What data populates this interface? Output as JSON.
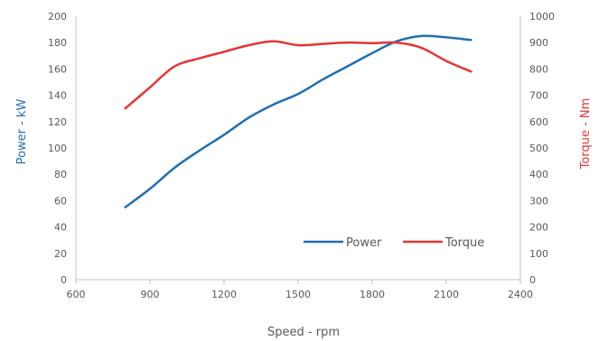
{
  "chart_data": {
    "type": "line",
    "title": "",
    "xlabel": "Speed - rpm",
    "ylabel_left": "Power - kW",
    "ylabel_right": "Torque - Nm",
    "xlim": [
      600,
      2400
    ],
    "ylim_left": [
      0,
      200
    ],
    "ylim_right": [
      0,
      1000
    ],
    "x_ticks": [
      600,
      900,
      1200,
      1500,
      1800,
      2100,
      2400
    ],
    "y_left_ticks": [
      0,
      20,
      40,
      60,
      80,
      100,
      120,
      140,
      160,
      180,
      200
    ],
    "y_right_ticks": [
      0,
      100,
      200,
      300,
      400,
      500,
      600,
      700,
      800,
      900,
      1000
    ],
    "grid": false,
    "legend_position": "bottom-right",
    "series": [
      {
        "name": "Power",
        "axis": "left",
        "color": "#1f6fb3",
        "x": [
          800,
          900,
          1000,
          1100,
          1200,
          1300,
          1400,
          1500,
          1600,
          1700,
          1800,
          1900,
          2000,
          2100,
          2200
        ],
        "y": [
          55,
          69,
          85,
          98,
          110,
          123,
          133,
          141,
          152,
          162,
          172,
          181,
          185,
          184,
          182
        ]
      },
      {
        "name": "Torque",
        "axis": "right",
        "color": "#e53535",
        "x": [
          800,
          900,
          1000,
          1100,
          1200,
          1300,
          1400,
          1500,
          1600,
          1700,
          1800,
          1900,
          2000,
          2100,
          2200
        ],
        "y": [
          650,
          730,
          810,
          840,
          865,
          890,
          905,
          890,
          895,
          900,
          898,
          900,
          880,
          830,
          790
        ]
      }
    ]
  }
}
